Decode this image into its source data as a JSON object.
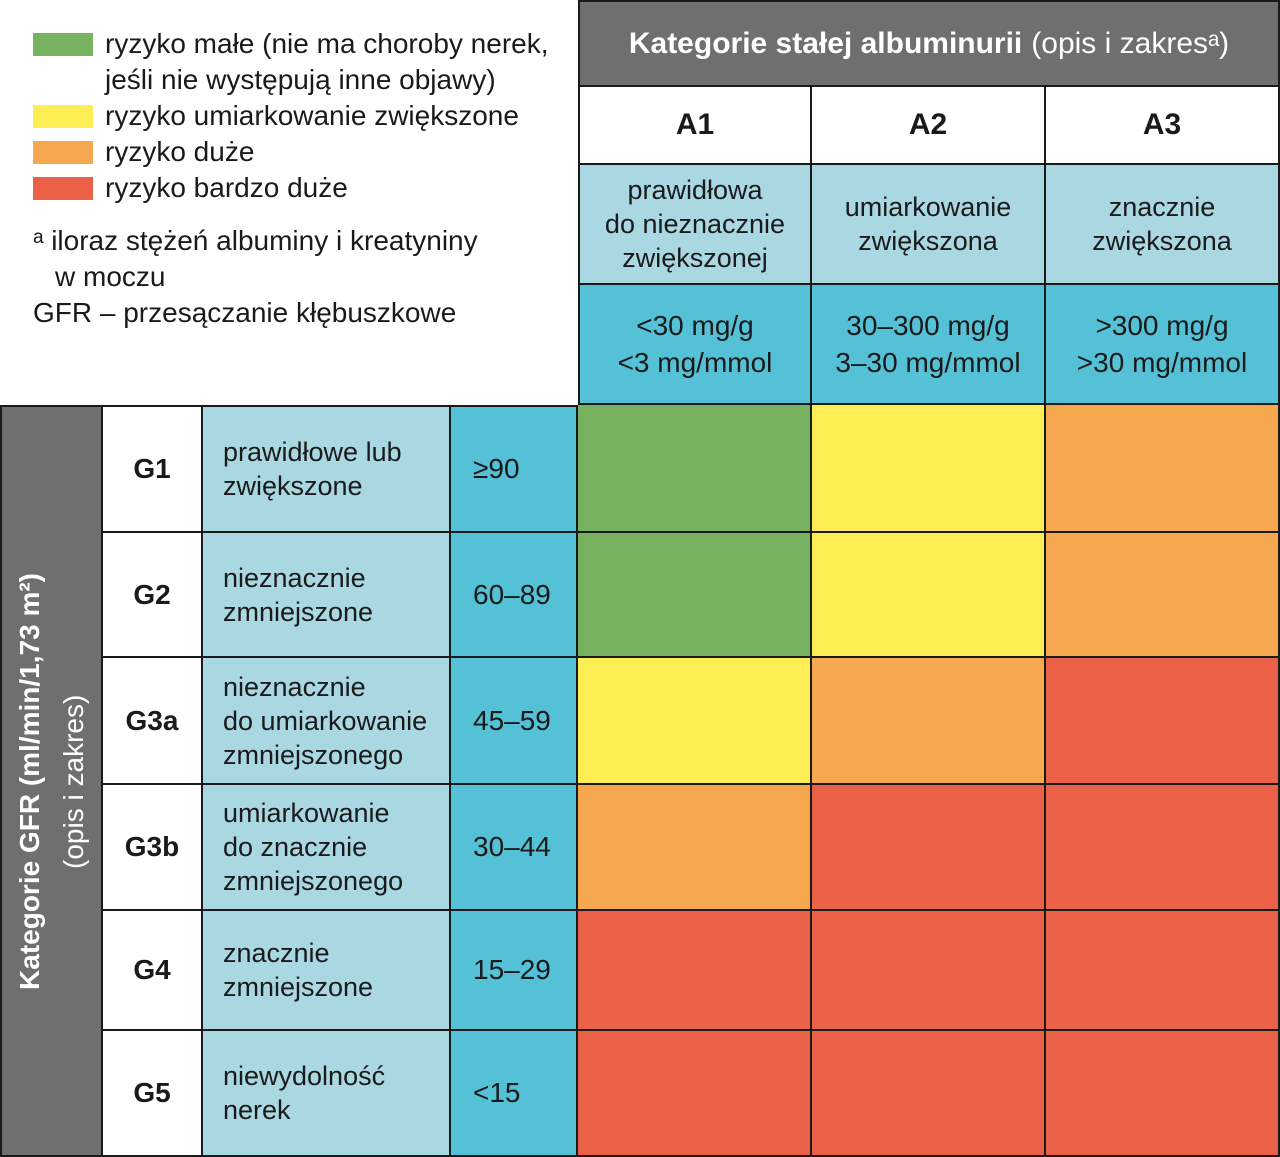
{
  "colors": {
    "green": "#77b261",
    "yellow": "#fdee55",
    "orange": "#f6a84f",
    "red": "#ea6148",
    "light_blue": "#a9d8e2",
    "cyan": "#54c1d6",
    "gray": "#6e6f6e",
    "border": "#1a1a1a"
  },
  "legend": {
    "items": [
      {
        "color": "green",
        "label": "ryzyko małe (nie ma choroby nerek,\njeśli nie występują inne objawy)"
      },
      {
        "color": "yellow",
        "label": "ryzyko umiarkowanie zwiększone"
      },
      {
        "color": "orange",
        "label": "ryzyko duże"
      },
      {
        "color": "red",
        "label": "ryzyko bardzo duże"
      }
    ],
    "footnotes": [
      "ᵃ iloraz stężeń albuminy i kreatyniny",
      "w moczu",
      "GFR – przesączanie kłębuszkowe"
    ]
  },
  "albuminuria_header": {
    "title_bold": "Kategorie stałej albuminurii",
    "title_regular": "(opis i zakresᵃ)"
  },
  "gfr_header": {
    "title_bold": "Kategorie GFR (ml/min/1,73 m²)",
    "title_regular": "(opis i zakres)"
  },
  "columns": [
    {
      "code": "A1",
      "description": "prawidłowa\ndo nieznacznie\nzwiększonej",
      "range": "<30 mg/g\n<3 mg/mmol"
    },
    {
      "code": "A2",
      "description": "umiarkowanie\nzwiększona",
      "range": "30–300 mg/g\n3–30 mg/mmol"
    },
    {
      "code": "A3",
      "description": "znacznie\nzwiększona",
      "range": ">300 mg/g\n>30 mg/mmol"
    }
  ],
  "rows": [
    {
      "code": "G1",
      "description": "prawidłowe lub\nzwiększone",
      "range": "≥90",
      "risks": [
        "green",
        "yellow",
        "orange"
      ]
    },
    {
      "code": "G2",
      "description": "nieznacznie\nzmniejszone",
      "range": "60–89",
      "risks": [
        "green",
        "yellow",
        "orange"
      ]
    },
    {
      "code": "G3a",
      "description": "nieznacznie\ndo umiarkowanie\nzmniejszonego",
      "range": "45–59",
      "risks": [
        "yellow",
        "orange",
        "red"
      ]
    },
    {
      "code": "G3b",
      "description": "umiarkowanie\ndo znacznie\nzmniejszonego",
      "range": "30–44",
      "risks": [
        "orange",
        "red",
        "red"
      ]
    },
    {
      "code": "G4",
      "description": "znacznie\nzmniejszone",
      "range": "15–29",
      "risks": [
        "red",
        "red",
        "red"
      ]
    },
    {
      "code": "G5",
      "description": "niewydolność\nnerek",
      "range": "<15",
      "risks": [
        "red",
        "red",
        "red"
      ]
    }
  ],
  "chart_data": {
    "type": "heatmap",
    "title": "Kategorie stałej albuminurii (opis i zakresᵃ)",
    "ylabel": "Kategorie GFR (ml/min/1,73 m²) (opis i zakres)",
    "x_categories": [
      "A1",
      "A2",
      "A3"
    ],
    "x_descriptions": [
      "prawidłowa do nieznacznie zwiększonej",
      "umiarkowanie zwiększona",
      "znacznie zwiększona"
    ],
    "x_ranges": [
      "<30 mg/g, <3 mg/mmol",
      "30–300 mg/g, 3–30 mg/mmol",
      ">300 mg/g, >30 mg/mmol"
    ],
    "y_categories": [
      "G1",
      "G2",
      "G3a",
      "G3b",
      "G4",
      "G5"
    ],
    "y_descriptions": [
      "prawidłowe lub zwiększone",
      "nieznacznie zmniejszone",
      "nieznacznie do umiarkowanie zmniejszonego",
      "umiarkowanie do znacznie zmniejszonego",
      "znacznie zmniejszone",
      "niewydolność nerek"
    ],
    "y_ranges": [
      "≥90",
      "60–89",
      "45–59",
      "30–44",
      "15–29",
      "<15"
    ],
    "values": [
      [
        "ryzyko małe",
        "ryzyko umiarkowanie zwiększone",
        "ryzyko duże"
      ],
      [
        "ryzyko małe",
        "ryzyko umiarkowanie zwiększone",
        "ryzyko duże"
      ],
      [
        "ryzyko umiarkowanie zwiększone",
        "ryzyko duże",
        "ryzyko bardzo duże"
      ],
      [
        "ryzyko duże",
        "ryzyko bardzo duże",
        "ryzyko bardzo duże"
      ],
      [
        "ryzyko bardzo duże",
        "ryzyko bardzo duże",
        "ryzyko bardzo duże"
      ],
      [
        "ryzyko bardzo duże",
        "ryzyko bardzo duże",
        "ryzyko bardzo duże"
      ]
    ],
    "legend_position": "top-left",
    "grid": true
  }
}
